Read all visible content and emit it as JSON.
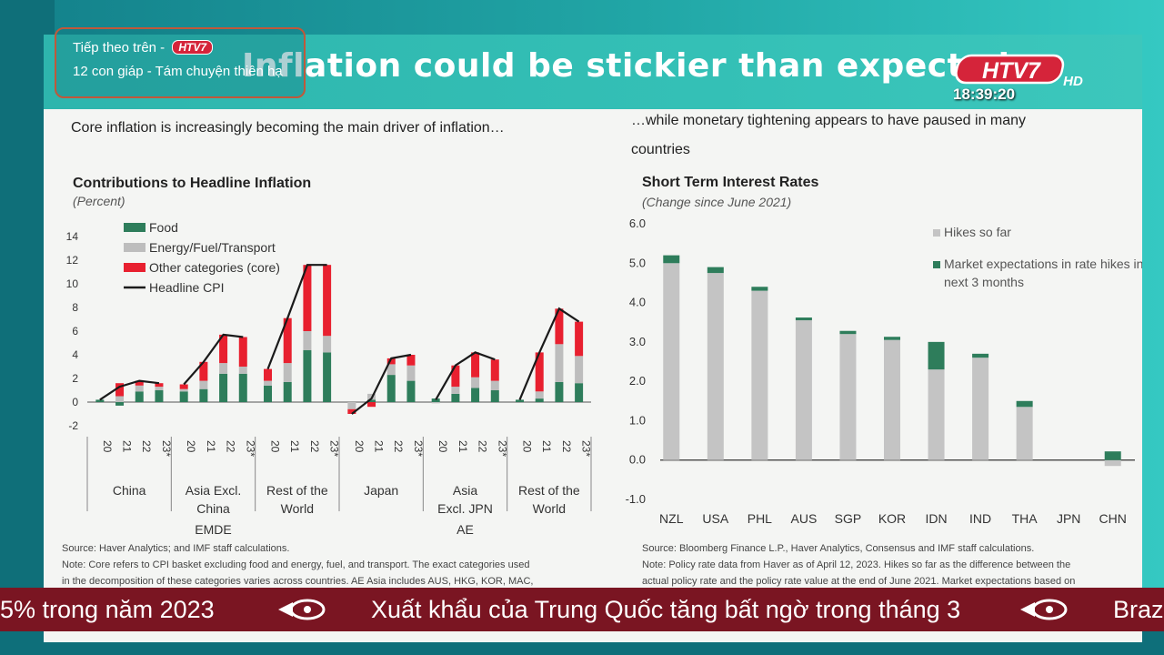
{
  "overlay": {
    "next_prefix": "Tiếp theo trên -",
    "next_channel": "HTV7",
    "next_program": "12 con giáp - Tám chuyện thiên hạ",
    "logo_text": "HTV7",
    "logo_hd": "HD",
    "clock": "18:39:20",
    "ticker": [
      "5% trong năm 2023",
      "Xuất khẩu của Trung Quốc tăng bất ngờ trong tháng 3",
      "Braz"
    ],
    "colors": {
      "ticker_bg": "#7a1522",
      "logo_red": "#d5243a",
      "banner": "#34c0b6"
    }
  },
  "slide": {
    "title": "Inflation could be stickier than expected"
  },
  "left_panel": {
    "subtitle": "Core inflation is increasingly becoming the main driver of inflation…",
    "chart_title": "Contributions to Headline Inflation",
    "chart_unit": "(Percent)",
    "source": "Source: Haver Analytics; and IMF staff calculations.",
    "note": "Note: Core refers to CPI basket excluding food and energy, fuel, and transport. The exact categories used",
    "note2": "in the decomposition of these categories varies across countries. AE Asia includes AUS, HKG, KOR, MAC,"
  },
  "right_panel": {
    "subtitle1": "…while monetary tightening appears to have paused in many",
    "subtitle2": "countries",
    "chart_title": "Short Term Interest Rates",
    "chart_unit": "(Change since June 2021)",
    "source": "Source: Bloomberg Finance L.P., Haver Analytics, Consensus and IMF staff calculations.",
    "note": "Note: Policy rate data from Haver as of April 12, 2023. Hikes so far as the difference between the",
    "note2": "actual policy rate and the policy rate value at the end of June 2021. Market expectations based on"
  },
  "chart_data": [
    {
      "type": "bar",
      "stacked": true,
      "title": "Contributions to Headline Inflation",
      "ylabel": "(Percent)",
      "ylim": [
        -2,
        14
      ],
      "yticks": [
        -2,
        0,
        2,
        4,
        6,
        8,
        10,
        12,
        14
      ],
      "legend": [
        "Food",
        "Energy/Fuel/Transport",
        "Other categories (core)",
        "Headline CPI"
      ],
      "legend_position": "top-left",
      "colors": {
        "Food": "#2e7d5b",
        "Energy/Fuel/Transport": "#bdbdbd",
        "Other categories (core)": "#e8202f",
        "Headline CPI": "#1a1a1a"
      },
      "groups": [
        {
          "name": "China",
          "years": [
            "20",
            "21",
            "22",
            "23*"
          ],
          "food": [
            0.2,
            -0.3,
            0.9,
            1.0
          ],
          "energy": [
            0.0,
            0.5,
            0.5,
            0.3
          ],
          "core": [
            0.0,
            1.1,
            0.4,
            0.3
          ],
          "headline": [
            0.2,
            1.3,
            1.8,
            1.6
          ]
        },
        {
          "name": "Asia Excl. China",
          "years": [
            "20",
            "21",
            "22",
            "23*"
          ],
          "food": [
            0.9,
            1.1,
            2.4,
            2.4
          ],
          "energy": [
            0.2,
            0.7,
            0.9,
            0.6
          ],
          "core": [
            0.4,
            1.6,
            2.4,
            2.5
          ],
          "headline": [
            1.5,
            3.4,
            5.7,
            5.5
          ]
        },
        {
          "name": "Rest of the World",
          "years": [
            "20",
            "21",
            "22",
            "23*"
          ],
          "food": [
            1.4,
            1.7,
            4.4,
            4.2
          ],
          "energy": [
            0.4,
            1.6,
            1.6,
            1.4
          ],
          "core": [
            1.0,
            3.8,
            5.6,
            6.0
          ],
          "headline": [
            2.8,
            7.1,
            11.6,
            11.6
          ]
        },
        {
          "name": "Japan",
          "years": [
            "20",
            "21",
            "22",
            "23*"
          ],
          "food": [
            0.0,
            0.2,
            2.3,
            1.8
          ],
          "energy": [
            -0.6,
            0.5,
            0.9,
            1.3
          ],
          "core": [
            -0.4,
            -0.4,
            0.5,
            0.9
          ],
          "headline": [
            -1.0,
            0.3,
            3.7,
            4.0
          ]
        },
        {
          "name": "Asia Excl. JPN",
          "years": [
            "20",
            "21",
            "22",
            "23*"
          ],
          "food": [
            0.3,
            0.7,
            1.2,
            1.0
          ],
          "energy": [
            -0.1,
            0.6,
            0.9,
            0.8
          ],
          "core": [
            0.0,
            1.8,
            2.1,
            1.8
          ],
          "headline": [
            0.2,
            3.1,
            4.2,
            3.6
          ]
        },
        {
          "name": "Rest of the World",
          "years": [
            "20",
            "21",
            "22",
            "23*"
          ],
          "food": [
            0.2,
            0.3,
            1.7,
            1.6
          ],
          "energy": [
            0.0,
            0.6,
            3.2,
            2.3
          ],
          "core": [
            0.0,
            3.3,
            3.0,
            2.9
          ],
          "headline": [
            0.2,
            4.2,
            7.9,
            6.8
          ]
        }
      ],
      "supergroups": [
        {
          "name": "EMDE",
          "groups": [
            0,
            1,
            2
          ]
        },
        {
          "name": "AE",
          "groups": [
            3,
            4,
            5
          ]
        }
      ]
    },
    {
      "type": "bar",
      "stacked": true,
      "title": "Short Term Interest Rates",
      "ylabel": "(Change since June 2021)",
      "ylim": [
        -1.0,
        6.0
      ],
      "yticks": [
        "-1.0",
        "0.0",
        "1.0",
        "2.0",
        "3.0",
        "4.0",
        "5.0",
        "6.0"
      ],
      "categories": [
        "NZL",
        "USA",
        "PHL",
        "AUS",
        "SGP",
        "KOR",
        "IDN",
        "IND",
        "THA",
        "JPN",
        "CHN"
      ],
      "series": [
        {
          "name": "Hikes so far",
          "color": "#c4c4c4",
          "values": [
            5.0,
            4.75,
            4.3,
            3.55,
            3.2,
            3.05,
            2.3,
            2.6,
            1.35,
            0.0,
            -0.15
          ]
        },
        {
          "name": "Market expectations in rate hikes in the next 3 months",
          "color": "#2e7d5b",
          "values": [
            0.2,
            0.15,
            0.1,
            0.07,
            0.08,
            0.08,
            0.7,
            0.1,
            0.15,
            0.0,
            0.22
          ]
        }
      ],
      "legend": [
        "Hikes so far",
        "Market expectations in rate hikes in the",
        "next 3 months"
      ],
      "legend_position": "top-right"
    }
  ]
}
